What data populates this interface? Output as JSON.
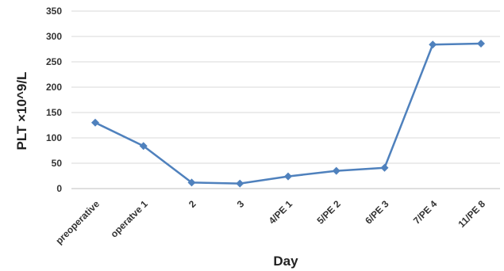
{
  "chart_data": {
    "type": "line",
    "title": "",
    "xlabel": "Day",
    "ylabel": "PLT ×10^9/L",
    "ylim": [
      0,
      350
    ],
    "yticks": [
      0,
      50,
      100,
      150,
      200,
      250,
      300,
      350
    ],
    "grid": true,
    "legend": "none",
    "categories": [
      "preoperative",
      "operatve 1",
      "2",
      "3",
      "4/PE 1",
      "5/PE 2",
      "6/PE 3",
      "7/PE 4",
      "11/PE 8"
    ],
    "series": [
      {
        "values": [
          130,
          84,
          12,
          10,
          24,
          35,
          41,
          284,
          286
        ]
      }
    ],
    "colors": {
      "line": "#4f81bd"
    }
  }
}
